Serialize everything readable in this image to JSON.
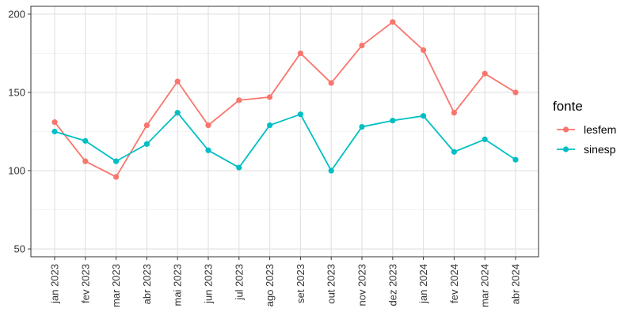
{
  "chart_data": {
    "type": "line",
    "title": "",
    "xlabel": "",
    "ylabel": "",
    "categories": [
      "jan 2023",
      "fev 2023",
      "mar 2023",
      "abr 2023",
      "mai 2023",
      "jun 2023",
      "jul 2023",
      "ago 2023",
      "set 2023",
      "out 2023",
      "nov 2023",
      "dez 2023",
      "jan 2024",
      "fev 2024",
      "mar 2024",
      "abr 2024"
    ],
    "y_ticks": [
      50,
      100,
      150,
      200
    ],
    "ylim": [
      45,
      205
    ],
    "grid": true,
    "legend": {
      "title": "fonte",
      "position": "right"
    },
    "series": [
      {
        "name": "lesfem",
        "color": "#f8766d",
        "values": [
          131,
          106,
          96,
          129,
          157,
          129,
          145,
          147,
          175,
          156,
          180,
          195,
          177,
          137,
          162,
          150
        ]
      },
      {
        "name": "sinesp",
        "color": "#00bfc4",
        "values": [
          125,
          119,
          106,
          117,
          137,
          113,
          102,
          129,
          136,
          100,
          128,
          132,
          135,
          112,
          120,
          107
        ]
      }
    ]
  }
}
